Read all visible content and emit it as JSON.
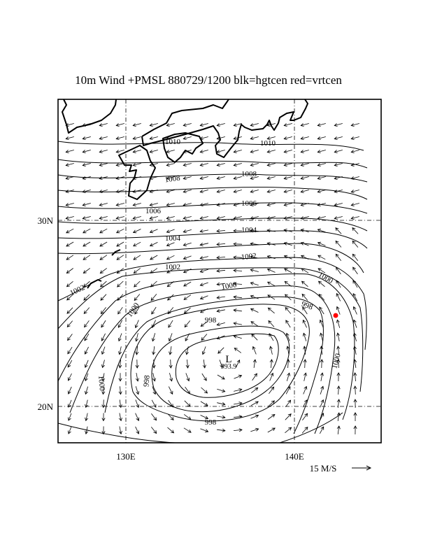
{
  "title": "10m Wind +PMSL 880729/1200 blk=hgtcen red=vrtcen",
  "axes": {
    "lon_ticks": [
      {
        "value": 130,
        "label": "130E"
      },
      {
        "value": 140,
        "label": "140E"
      }
    ],
    "lat_ticks": [
      {
        "value": 20,
        "label": "20N"
      },
      {
        "value": 30,
        "label": "30N"
      }
    ],
    "lon_range": [
      126,
      145
    ],
    "lat_range": [
      18,
      36.5
    ],
    "grid": "dash-dot"
  },
  "wind_legend": {
    "label": "15 M/S"
  },
  "low_center": {
    "symbol": "L",
    "value": "993.9",
    "lon": 136.0,
    "lat": 22.5
  },
  "vorticity_center": {
    "lon": 142.5,
    "lat": 25.0,
    "color": "#ff0000"
  },
  "isobar_labels": [
    {
      "text": "1010"
    },
    {
      "text": "1010"
    },
    {
      "text": "1008"
    },
    {
      "text": "1008"
    },
    {
      "text": "1006"
    },
    {
      "text": "1006"
    },
    {
      "text": "1004"
    },
    {
      "text": "1004"
    },
    {
      "text": "1002"
    },
    {
      "text": "1002"
    },
    {
      "text": "1002"
    },
    {
      "text": "1000"
    },
    {
      "text": "1000"
    },
    {
      "text": "1000"
    },
    {
      "text": "1000"
    },
    {
      "text": "1000"
    },
    {
      "text": "998"
    },
    {
      "text": "998"
    },
    {
      "text": "998"
    },
    {
      "text": "998"
    },
    {
      "text": "996"
    },
    {
      "text": "996"
    }
  ],
  "colors": {
    "foreground": "#000000",
    "vorticity": "#ff0000",
    "background": "#ffffff"
  }
}
